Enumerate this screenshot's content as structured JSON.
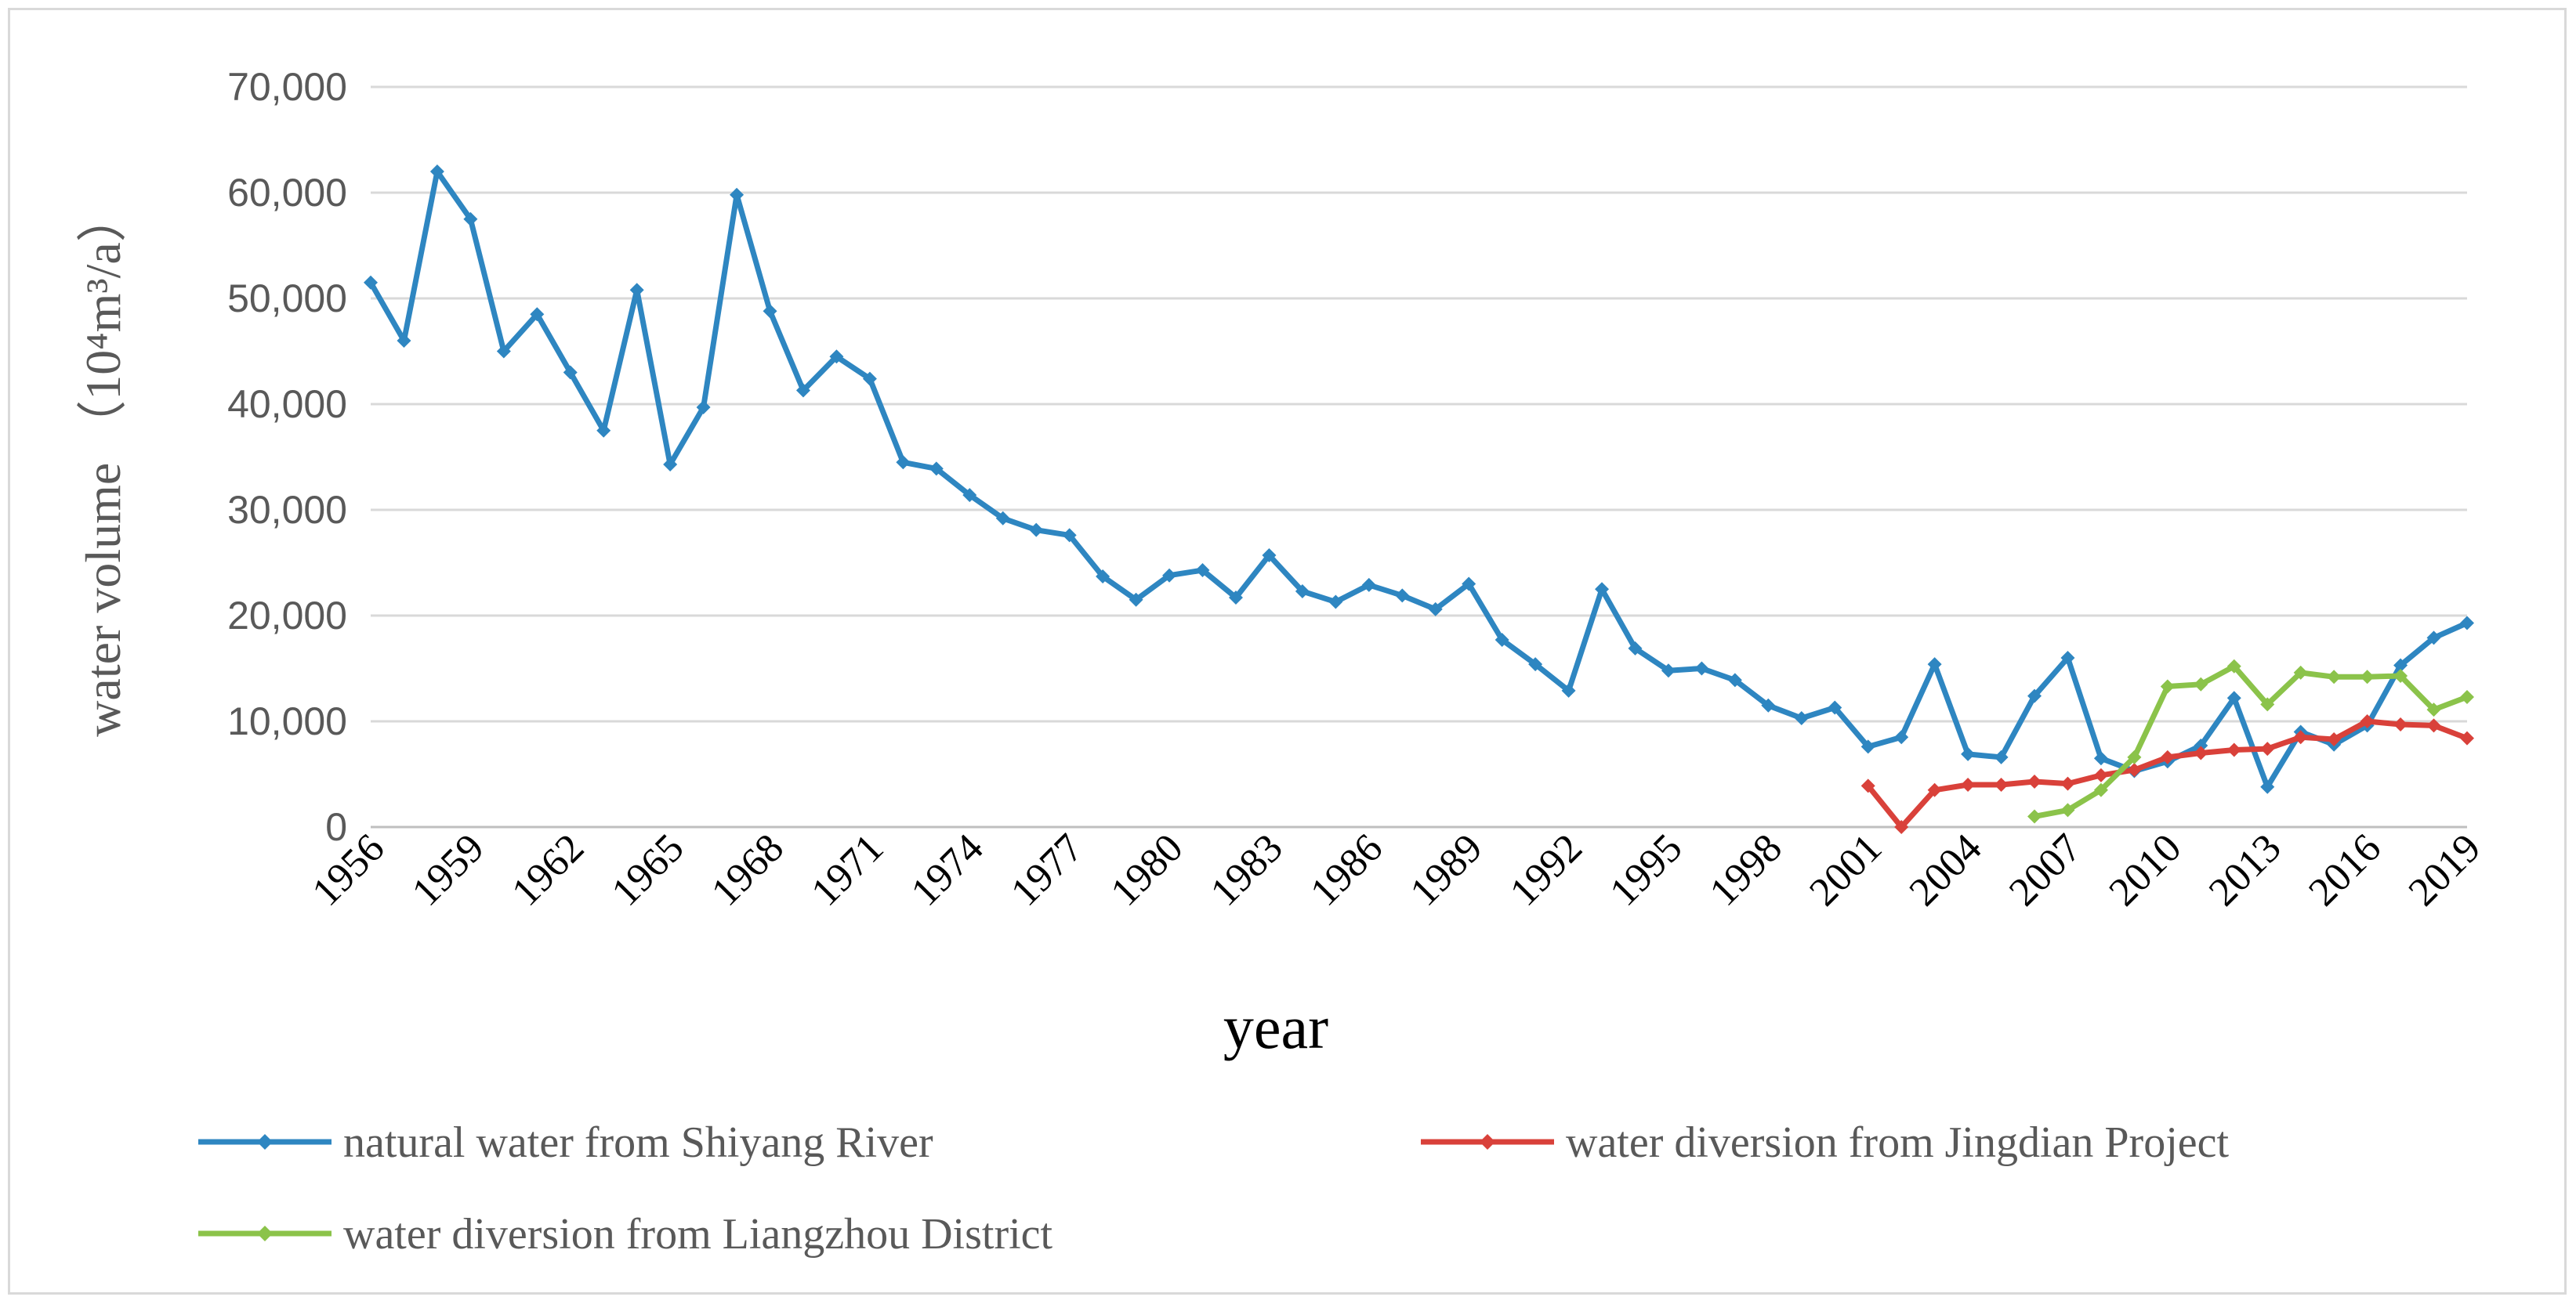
{
  "chart_data": {
    "type": "line",
    "title": "",
    "xlabel": "year",
    "ylabel": "water volume",
    "ylabel_unit": "（10⁴m³/a）",
    "ylim": [
      0,
      70000
    ],
    "yticks": [
      0,
      10000,
      20000,
      30000,
      40000,
      50000,
      60000,
      70000
    ],
    "ytick_labels": [
      "0",
      "10,000",
      "20,000",
      "30,000",
      "40,000",
      "50,000",
      "60,000",
      "70,000"
    ],
    "xlim": [
      1956,
      2019
    ],
    "xtick_labels": [
      "1956",
      "1959",
      "1962",
      "1965",
      "1968",
      "1971",
      "1974",
      "1977",
      "1980",
      "1983",
      "1986",
      "1989",
      "1992",
      "1995",
      "1998",
      "2001",
      "2004",
      "2007",
      "2010",
      "2013",
      "2016",
      "2019"
    ],
    "grid": "horizontal",
    "legend_position": "bottom",
    "series": [
      {
        "name": "natural water from Shiyang River",
        "color": "#2e86c1",
        "x": [
          1956,
          1957,
          1958,
          1959,
          1960,
          1961,
          1962,
          1963,
          1964,
          1965,
          1966,
          1967,
          1968,
          1969,
          1970,
          1971,
          1972,
          1973,
          1974,
          1975,
          1976,
          1977,
          1978,
          1979,
          1980,
          1981,
          1982,
          1983,
          1984,
          1985,
          1986,
          1987,
          1988,
          1989,
          1990,
          1991,
          1992,
          1993,
          1994,
          1995,
          1996,
          1997,
          1998,
          1999,
          2000,
          2001,
          2002,
          2003,
          2004,
          2005,
          2006,
          2007,
          2008,
          2009,
          2010,
          2011,
          2012,
          2013,
          2014,
          2015,
          2016,
          2017,
          2018,
          2019
        ],
        "values": [
          51500,
          46000,
          62000,
          57500,
          45000,
          48500,
          43000,
          37500,
          50800,
          34300,
          39700,
          59800,
          48800,
          41300,
          44500,
          42400,
          34500,
          33900,
          31400,
          29200,
          28100,
          27600,
          23700,
          21500,
          23800,
          24300,
          21700,
          25700,
          22300,
          21300,
          22900,
          21900,
          20600,
          23000,
          17700,
          15400,
          12900,
          22500,
          16900,
          14800,
          15000,
          13900,
          11500,
          10300,
          11300,
          7600,
          8500,
          15400,
          6900,
          6600,
          12400,
          16000,
          6500,
          5300,
          6200,
          7700,
          12200,
          3800,
          9000,
          7800,
          9600,
          15300,
          17900,
          19300
        ]
      },
      {
        "name": "water diversion from Jingdian Project",
        "color": "#d9413a",
        "x": [
          2001,
          2002,
          2003,
          2004,
          2005,
          2006,
          2007,
          2008,
          2009,
          2010,
          2011,
          2012,
          2013,
          2014,
          2015,
          2016,
          2017,
          2018,
          2019
        ],
        "values": [
          3900,
          0,
          3500,
          4000,
          4000,
          4300,
          4100,
          4900,
          5400,
          6600,
          7000,
          7300,
          7400,
          8500,
          8300,
          10000,
          9700,
          9600,
          8400
        ]
      },
      {
        "name": "water diversion from Liangzhou District",
        "color": "#8bc34a",
        "x": [
          2006,
          2007,
          2008,
          2009,
          2010,
          2011,
          2012,
          2013,
          2014,
          2015,
          2016,
          2017,
          2018,
          2019
        ],
        "values": [
          1000,
          1600,
          3500,
          6600,
          13300,
          13500,
          15200,
          11600,
          14600,
          14200,
          14200,
          14300,
          11100,
          12300
        ]
      }
    ]
  }
}
